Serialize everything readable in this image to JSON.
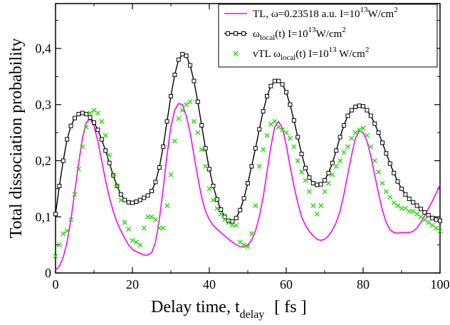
{
  "chart_data": {
    "type": "line",
    "xlabel": "Delay time,  t",
    "xlabel_sub": "delay",
    "xlabel_unit": "[ fs ]",
    "ylabel": "Total dissociation probability",
    "xlim": [
      0,
      100
    ],
    "ylim": [
      0,
      0.48
    ],
    "xticks": [
      0,
      20,
      40,
      60,
      80,
      100
    ],
    "yticks": [
      0,
      0.1,
      0.2,
      0.3,
      0.4
    ],
    "ytick_labels": [
      "0",
      "0,1",
      "0,2",
      "0,3",
      "0,4"
    ],
    "grid": false,
    "legend_position": "top-right",
    "legend": [
      {
        "pre": "TL, ω=0.23518 a.u.    I=10",
        "sup": "13",
        "post": "W/cm",
        "sup2": "2"
      },
      {
        "pre": "ω",
        "sub": "local",
        "mid": "(t)    I=10",
        "sup": "13",
        "post": "W/cm",
        "sup2": "2"
      },
      {
        "pre": "vTL ω",
        "sub": "local",
        "mid": "(t)    I=10",
        "sup": "13",
        "post": " W/cm",
        "sup2": "2"
      }
    ],
    "series": [
      {
        "style": "line",
        "color": "#ff00ff",
        "x": [
          0,
          1,
          2,
          3,
          4,
          5,
          6,
          7,
          8,
          9,
          10,
          11,
          12,
          13,
          14,
          15,
          16,
          17,
          18,
          19,
          20,
          21,
          22,
          23,
          24,
          25,
          26,
          27,
          28,
          29,
          30,
          31,
          32,
          33,
          34,
          35,
          36,
          37,
          38,
          39,
          40,
          41,
          42,
          43,
          44,
          45,
          46,
          47,
          48,
          49,
          50,
          51,
          52,
          53,
          54,
          55,
          56,
          57,
          58,
          59,
          60,
          61,
          62,
          63,
          64,
          65,
          66,
          67,
          68,
          69,
          70,
          71,
          72,
          73,
          74,
          75,
          76,
          77,
          78,
          79,
          80,
          81,
          82,
          83,
          84,
          85,
          86,
          87,
          88,
          89,
          90,
          91,
          92,
          93,
          94,
          95,
          96,
          97,
          98,
          99,
          100
        ],
        "values": [
          0.005,
          0.012,
          0.028,
          0.055,
          0.095,
          0.145,
          0.195,
          0.24,
          0.268,
          0.275,
          0.262,
          0.235,
          0.2,
          0.165,
          0.135,
          0.11,
          0.09,
          0.075,
          0.062,
          0.05,
          0.042,
          0.038,
          0.035,
          0.032,
          0.032,
          0.036,
          0.055,
          0.095,
          0.15,
          0.21,
          0.26,
          0.29,
          0.302,
          0.3,
          0.28,
          0.25,
          0.21,
          0.17,
          0.135,
          0.11,
          0.095,
          0.085,
          0.078,
          0.072,
          0.066,
          0.06,
          0.055,
          0.05,
          0.047,
          0.046,
          0.05,
          0.058,
          0.075,
          0.1,
          0.135,
          0.18,
          0.225,
          0.26,
          0.27,
          0.258,
          0.228,
          0.19,
          0.155,
          0.125,
          0.1,
          0.085,
          0.074,
          0.066,
          0.06,
          0.058,
          0.06,
          0.066,
          0.076,
          0.09,
          0.11,
          0.14,
          0.175,
          0.21,
          0.24,
          0.253,
          0.25,
          0.235,
          0.208,
          0.175,
          0.142,
          0.112,
          0.09,
          0.077,
          0.072,
          0.071,
          0.072,
          0.072,
          0.072,
          0.074,
          0.08,
          0.09,
          0.102,
          0.115,
          0.128,
          0.142,
          0.158
        ]
      },
      {
        "style": "line-square",
        "color": "#000000",
        "x": [
          0,
          1,
          2,
          3,
          4,
          5,
          6,
          7,
          8,
          9,
          10,
          11,
          12,
          13,
          14,
          15,
          16,
          17,
          18,
          19,
          20,
          21,
          22,
          23,
          24,
          25,
          26,
          27,
          28,
          29,
          30,
          31,
          32,
          33,
          34,
          35,
          36,
          37,
          38,
          39,
          40,
          41,
          42,
          43,
          44,
          45,
          46,
          47,
          48,
          49,
          50,
          51,
          52,
          53,
          54,
          55,
          56,
          57,
          58,
          59,
          60,
          61,
          62,
          63,
          64,
          65,
          66,
          67,
          68,
          69,
          70,
          71,
          72,
          73,
          74,
          75,
          76,
          77,
          78,
          79,
          80,
          81,
          82,
          83,
          84,
          85,
          86,
          87,
          88,
          89,
          90,
          91,
          92,
          93,
          94,
          95,
          96,
          97,
          98,
          99,
          100
        ],
        "values": [
          0.105,
          0.155,
          0.2,
          0.238,
          0.262,
          0.276,
          0.283,
          0.285,
          0.283,
          0.277,
          0.268,
          0.255,
          0.238,
          0.218,
          0.196,
          0.174,
          0.155,
          0.14,
          0.13,
          0.126,
          0.125,
          0.127,
          0.13,
          0.134,
          0.138,
          0.146,
          0.162,
          0.188,
          0.225,
          0.27,
          0.315,
          0.353,
          0.38,
          0.39,
          0.387,
          0.37,
          0.342,
          0.305,
          0.263,
          0.222,
          0.185,
          0.155,
          0.131,
          0.113,
          0.1,
          0.093,
          0.092,
          0.098,
          0.112,
          0.133,
          0.16,
          0.19,
          0.222,
          0.256,
          0.288,
          0.315,
          0.333,
          0.342,
          0.342,
          0.336,
          0.322,
          0.3,
          0.272,
          0.242,
          0.212,
          0.187,
          0.17,
          0.16,
          0.157,
          0.158,
          0.165,
          0.178,
          0.196,
          0.218,
          0.242,
          0.263,
          0.28,
          0.29,
          0.296,
          0.298,
          0.297,
          0.29,
          0.28,
          0.266,
          0.25,
          0.232,
          0.213,
          0.195,
          0.178,
          0.163,
          0.15,
          0.14,
          0.132,
          0.126,
          0.12,
          0.114,
          0.108,
          0.103,
          0.098,
          0.095,
          0.093
        ]
      },
      {
        "style": "cross",
        "color": "#22dd00",
        "x": [
          0,
          1,
          2,
          3,
          4,
          5,
          6,
          7,
          8,
          9,
          10,
          11,
          12,
          13,
          14,
          15,
          16,
          17,
          18,
          19,
          20,
          21,
          22,
          23,
          24,
          25,
          26,
          27,
          28,
          29,
          30,
          31,
          32,
          33,
          34,
          35,
          36,
          37,
          38,
          39,
          40,
          41,
          42,
          43,
          44,
          45,
          46,
          47,
          48,
          49,
          50,
          51,
          52,
          53,
          54,
          55,
          56,
          57,
          58,
          59,
          60,
          61,
          62,
          63,
          64,
          65,
          66,
          67,
          68,
          69,
          70,
          71,
          72,
          73,
          74,
          75,
          76,
          77,
          78,
          79,
          80,
          81,
          82,
          83,
          84,
          85,
          86,
          87,
          88,
          89,
          90,
          91,
          92,
          93,
          94,
          95,
          96,
          97,
          98,
          99,
          100
        ],
        "values": [
          0.03,
          0.05,
          0.07,
          0.075,
          0.095,
          0.14,
          0.185,
          0.225,
          0.26,
          0.285,
          0.29,
          0.285,
          0.27,
          0.245,
          0.21,
          0.175,
          0.155,
          0.13,
          0.09,
          0.078,
          0.058,
          0.055,
          0.05,
          0.08,
          0.1,
          0.1,
          0.095,
          0.08,
          0.08,
          0.12,
          0.175,
          0.235,
          0.275,
          0.29,
          0.3,
          0.305,
          0.27,
          0.25,
          0.22,
          0.19,
          0.15,
          0.13,
          0.115,
          0.105,
          0.095,
          0.09,
          0.085,
          0.085,
          0.055,
          0.05,
          0.047,
          0.07,
          0.12,
          0.19,
          0.22,
          0.245,
          0.265,
          0.27,
          0.26,
          0.255,
          0.25,
          0.24,
          0.225,
          0.2,
          0.18,
          0.165,
          0.145,
          0.12,
          0.105,
          0.12,
          0.145,
          0.16,
          0.175,
          0.19,
          0.2,
          0.215,
          0.225,
          0.24,
          0.25,
          0.255,
          0.258,
          0.245,
          0.225,
          0.2,
          0.18,
          0.16,
          0.145,
          0.135,
          0.125,
          0.12,
          0.115,
          0.115,
          0.11,
          0.11,
          0.105,
          0.1,
          0.095,
          0.09,
          0.085,
          0.08,
          0.075
        ]
      }
    ]
  }
}
